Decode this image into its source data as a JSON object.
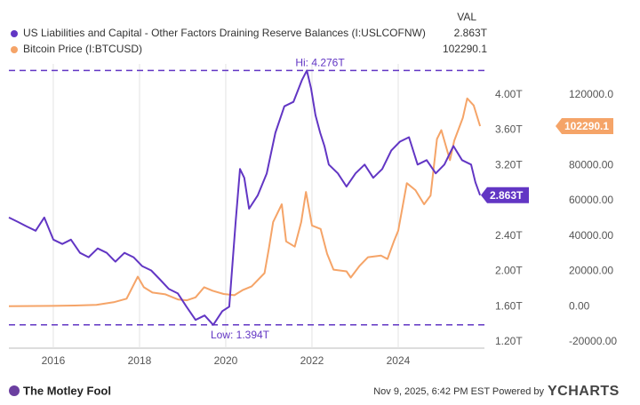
{
  "chart_data": {
    "type": "line",
    "value_header": "VAL",
    "xlim": [
      2014.97,
      2026.0
    ],
    "xticks": [
      2016,
      2018,
      2020,
      2022,
      2024
    ],
    "grid": "x",
    "ylim": [
      1.13,
      4.35
    ],
    "yticks": [
      {
        "value": 4.0,
        "label": "4.00T"
      },
      {
        "value": 3.6,
        "label": "3.60T"
      },
      {
        "value": 3.2,
        "label": "3.20T"
      },
      {
        "value": 2.4,
        "label": "2.40T"
      },
      {
        "value": 2.0,
        "label": "2.00T"
      },
      {
        "value": 1.6,
        "label": "1.60T"
      },
      {
        "value": 1.2,
        "label": "1.20T"
      }
    ],
    "y2lim": [
      -23500,
      137500
    ],
    "y2ticks": [
      {
        "value": 120000,
        "label": "120000.0"
      },
      {
        "value": 80000,
        "label": "80000.00"
      },
      {
        "value": 60000,
        "label": "60000.00"
      },
      {
        "value": 40000,
        "label": "40000.00"
      },
      {
        "value": 20000,
        "label": "20000.00"
      },
      {
        "value": 0,
        "label": "0.00"
      },
      {
        "value": -20000,
        "label": "-20000.00"
      }
    ],
    "hi": {
      "value": 4.276,
      "label": "Hi: 4.276T"
    },
    "low": {
      "value": 1.394,
      "label": "Low: 1.394T"
    },
    "series": [
      {
        "name": "US Liabilities and Capital  - Other Factors Draining Reserve Balances (I:USLCOFNW)",
        "color": "#6236c4",
        "axis": "y",
        "last_label": "2.863T",
        "x": [
          2014.97,
          2015.18,
          2015.38,
          2015.59,
          2015.79,
          2016.0,
          2016.21,
          2016.41,
          2016.62,
          2016.82,
          2017.03,
          2017.24,
          2017.44,
          2017.65,
          2017.86,
          2018.06,
          2018.27,
          2018.47,
          2018.68,
          2018.89,
          2019.09,
          2019.3,
          2019.51,
          2019.71,
          2019.92,
          2020.08,
          2020.23,
          2020.33,
          2020.43,
          2020.54,
          2020.74,
          2020.95,
          2021.15,
          2021.36,
          2021.57,
          2021.77,
          2021.88,
          2021.98,
          2022.08,
          2022.19,
          2022.29,
          2022.39,
          2022.6,
          2022.8,
          2023.01,
          2023.22,
          2023.42,
          2023.63,
          2023.84,
          2024.04,
          2024.25,
          2024.45,
          2024.66,
          2024.87,
          2025.07,
          2025.28,
          2025.48,
          2025.69,
          2025.79,
          2025.9
        ],
        "values": [
          2.61,
          2.56,
          2.51,
          2.46,
          2.61,
          2.36,
          2.31,
          2.36,
          2.21,
          2.16,
          2.26,
          2.21,
          2.11,
          2.21,
          2.16,
          2.06,
          2.01,
          1.91,
          1.8,
          1.75,
          1.6,
          1.45,
          1.5,
          1.394,
          1.55,
          1.6,
          2.56,
          3.16,
          3.06,
          2.71,
          2.86,
          3.11,
          3.57,
          3.87,
          3.92,
          4.17,
          4.276,
          4.07,
          3.77,
          3.57,
          3.42,
          3.21,
          3.11,
          2.96,
          3.11,
          3.21,
          3.06,
          3.16,
          3.37,
          3.47,
          3.52,
          3.21,
          3.26,
          3.11,
          3.21,
          3.42,
          3.26,
          3.21,
          3.01,
          2.863
        ]
      },
      {
        "name": "Bitcoin Price (I:BTCUSD)",
        "color": "#f5a468",
        "axis": "y2",
        "last_label": "102290.1",
        "x": [
          2014.97,
          2016.0,
          2016.5,
          2017.0,
          2017.4,
          2017.7,
          2017.96,
          2018.1,
          2018.3,
          2018.6,
          2018.9,
          2019.1,
          2019.3,
          2019.5,
          2019.7,
          2019.95,
          2020.2,
          2020.4,
          2020.6,
          2020.9,
          2021.0,
          2021.1,
          2021.3,
          2021.4,
          2021.6,
          2021.75,
          2021.86,
          2022.0,
          2022.2,
          2022.35,
          2022.5,
          2022.8,
          2022.9,
          2023.1,
          2023.3,
          2023.6,
          2023.75,
          2023.9,
          2024.0,
          2024.2,
          2024.4,
          2024.6,
          2024.75,
          2024.9,
          2025.0,
          2025.2,
          2025.3,
          2025.5,
          2025.6,
          2025.75,
          2025.9
        ],
        "values": [
          300,
          430,
          650,
          1000,
          2500,
          4500,
          17000,
          11000,
          8000,
          7000,
          4000,
          3600,
          5300,
          11000,
          9000,
          7200,
          6500,
          9500,
          11500,
          19000,
          33000,
          48000,
          58000,
          37000,
          34000,
          48000,
          65000,
          46000,
          44000,
          30000,
          21000,
          20000,
          16500,
          23000,
          28000,
          29000,
          27000,
          37000,
          43000,
          70000,
          66000,
          58000,
          63000,
          95000,
          100000,
          83000,
          94000,
          107000,
          118000,
          114000,
          102290.1
        ]
      }
    ]
  },
  "footer": {
    "brand": "The Motley Fool",
    "timestamp": "Nov 9, 2025, 6:42 PM EST Powered by",
    "logo": "YCHARTS"
  }
}
